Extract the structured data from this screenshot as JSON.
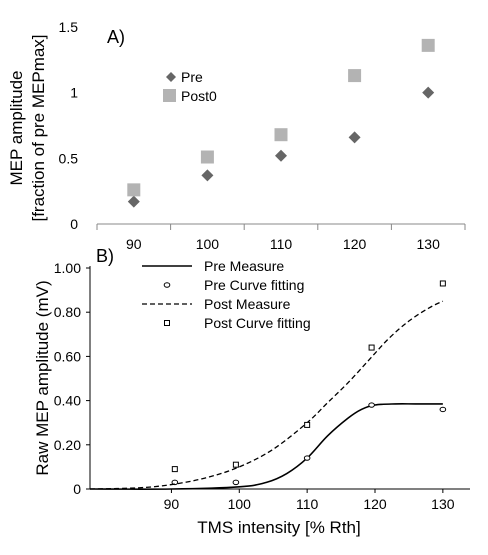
{
  "chart_data": [
    {
      "type": "scatter",
      "panel_label": "A)",
      "ylabel_line1": "MEP amplitude",
      "ylabel_line2": "[fraction of pre MEPmax]",
      "categories": [
        "90",
        "100",
        "110",
        "120",
        "130"
      ],
      "ylim": [
        0,
        1.5
      ],
      "yticks": [
        "0",
        "0.5",
        "1",
        "1.5"
      ],
      "ytick_values": [
        0,
        0.5,
        1,
        1.5
      ],
      "legend_position": "left",
      "series": [
        {
          "name": "Pre",
          "marker": "diamond",
          "color": "#666666",
          "values": [
            0.17,
            0.37,
            0.52,
            0.66,
            1.0
          ]
        },
        {
          "name": "Post0",
          "marker": "square",
          "color": "#b3b3b3",
          "values": [
            0.26,
            0.51,
            0.68,
            1.13,
            1.36
          ]
        }
      ]
    },
    {
      "type": "line",
      "panel_label": "B)",
      "ylabel": "Raw MEP amplitude (mV)",
      "xlabel": "TMS intensity [% Rth]",
      "xlim": [
        78,
        134
      ],
      "xticks": [
        "90",
        "100",
        "110",
        "120",
        "130"
      ],
      "xtick_values": [
        90,
        100,
        110,
        120,
        130
      ],
      "ylim": [
        0,
        1.0
      ],
      "yticks": [
        "0",
        "0.20",
        "0.40",
        "0.60",
        "0.80",
        "1.00"
      ],
      "ytick_values": [
        0,
        0.2,
        0.4,
        0.6,
        0.8,
        1.0
      ],
      "legend_position": "top-left",
      "series": [
        {
          "name": "Pre Measure",
          "kind": "curve",
          "style": "solid",
          "x": [
            78,
            90,
            100,
            104,
            107,
            110,
            113,
            116,
            118,
            120,
            123,
            126,
            130
          ],
          "y": [
            0,
            0,
            0.01,
            0.03,
            0.07,
            0.14,
            0.24,
            0.32,
            0.36,
            0.38,
            0.385,
            0.385,
            0.385
          ]
        },
        {
          "name": "Pre Curve fitting",
          "kind": "points",
          "marker": "circle",
          "x": [
            90.5,
            99.5,
            110,
            119.5,
            130
          ],
          "y": [
            0.03,
            0.03,
            0.14,
            0.38,
            0.36
          ]
        },
        {
          "name": "Post Measure",
          "kind": "curve",
          "style": "dashed",
          "x": [
            78,
            85,
            90,
            95,
            100,
            105,
            110,
            113,
            116,
            119,
            122,
            125,
            128,
            130
          ],
          "y": [
            0,
            0.005,
            0.02,
            0.05,
            0.1,
            0.18,
            0.3,
            0.39,
            0.48,
            0.58,
            0.68,
            0.76,
            0.82,
            0.85
          ]
        },
        {
          "name": "Post Curve fitting",
          "kind": "points",
          "marker": "square",
          "x": [
            90.5,
            99.5,
            110,
            119.5,
            130
          ],
          "y": [
            0.09,
            0.11,
            0.29,
            0.64,
            0.93
          ]
        }
      ]
    }
  ]
}
